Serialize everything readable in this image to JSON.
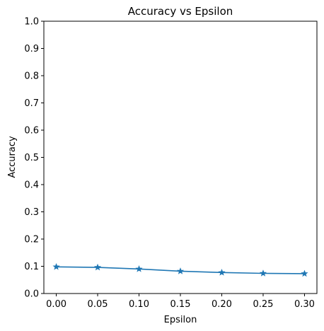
{
  "chart_data": {
    "type": "line",
    "title": "Accuracy vs Epsilon",
    "xlabel": "Epsilon",
    "ylabel": "Accuracy",
    "xlim": [
      -0.015,
      0.315
    ],
    "ylim": [
      0.0,
      1.0
    ],
    "x_ticks": [
      "0.00",
      "0.05",
      "0.10",
      "0.15",
      "0.20",
      "0.25",
      "0.30"
    ],
    "y_ticks": [
      "0.0",
      "0.1",
      "0.2",
      "0.3",
      "0.4",
      "0.5",
      "0.6",
      "0.7",
      "0.8",
      "0.9",
      "1.0"
    ],
    "grid": false,
    "marker": "star",
    "series": [
      {
        "color": "#1f77b4",
        "x": [
          0.0,
          0.05,
          0.1,
          0.15,
          0.2,
          0.25,
          0.3
        ],
        "y": [
          0.098,
          0.096,
          0.09,
          0.082,
          0.077,
          0.074,
          0.073
        ]
      }
    ]
  }
}
